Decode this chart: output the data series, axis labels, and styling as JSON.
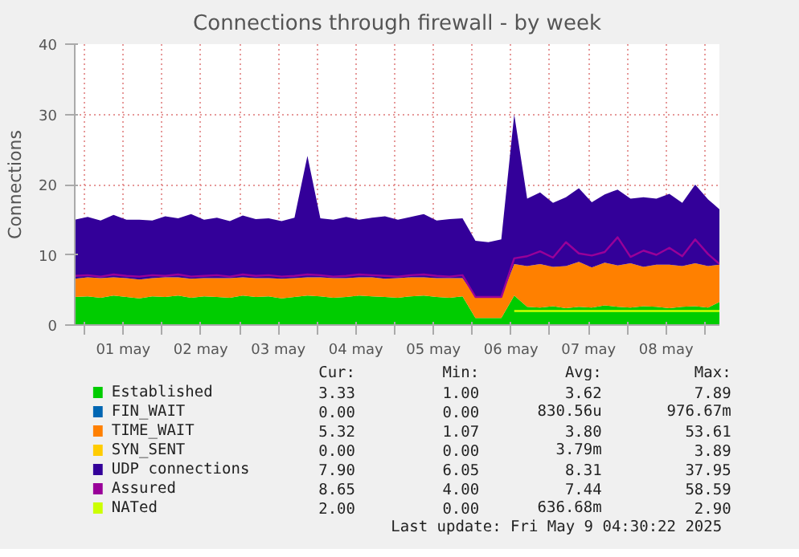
{
  "chart_data": {
    "type": "area",
    "stacked": true,
    "title": "Connections through firewall - by week",
    "ylabel": "Connections",
    "x": [
      "2025-04-30T21:00",
      "2025-05-01T01:00",
      "2025-05-01T05:00",
      "2025-05-01T09:00",
      "2025-05-01T13:00",
      "2025-05-01T17:00",
      "2025-05-01T21:00",
      "2025-05-02T01:00",
      "2025-05-02T05:00",
      "2025-05-02T09:00",
      "2025-05-02T13:00",
      "2025-05-02T17:00",
      "2025-05-02T21:00",
      "2025-05-03T01:00",
      "2025-05-03T05:00",
      "2025-05-03T09:00",
      "2025-05-03T13:00",
      "2025-05-03T17:00",
      "2025-05-03T21:00",
      "2025-05-04T01:00",
      "2025-05-04T05:00",
      "2025-05-04T09:00",
      "2025-05-04T13:00",
      "2025-05-04T17:00",
      "2025-05-04T21:00",
      "2025-05-05T01:00",
      "2025-05-05T05:00",
      "2025-05-05T09:00",
      "2025-05-05T13:00",
      "2025-05-05T17:00",
      "2025-05-05T21:00",
      "2025-05-06T01:00",
      "2025-05-06T05:00",
      "2025-05-06T09:00",
      "2025-05-06T13:00",
      "2025-05-06T17:00",
      "2025-05-06T21:00",
      "2025-05-07T01:00",
      "2025-05-07T05:00",
      "2025-05-07T09:00",
      "2025-05-07T13:00",
      "2025-05-07T17:00",
      "2025-05-07T21:00",
      "2025-05-08T01:00",
      "2025-05-08T05:00",
      "2025-05-08T09:00",
      "2025-05-08T13:00",
      "2025-05-08T17:00",
      "2025-05-08T21:00",
      "2025-05-09T01:00",
      "2025-05-09T04:30"
    ],
    "series": [
      {
        "name": "Established",
        "color": "#00cc00",
        "values": [
          4.0,
          4.1,
          3.9,
          4.2,
          4.0,
          3.8,
          4.1,
          4.0,
          4.2,
          3.9,
          4.1,
          4.0,
          3.9,
          4.2,
          4.0,
          4.1,
          3.8,
          4.0,
          4.2,
          4.1,
          3.9,
          4.0,
          4.2,
          4.1,
          4.0,
          3.9,
          4.1,
          4.2,
          4.0,
          3.9,
          4.1,
          1.0,
          1.0,
          1.0,
          4.2,
          2.6,
          2.5,
          2.7,
          2.4,
          2.6,
          2.5,
          2.8,
          2.6,
          2.5,
          2.7,
          2.6,
          2.4,
          2.6,
          2.7,
          2.5,
          3.3
        ]
      },
      {
        "name": "FIN_WAIT",
        "color": "#0066b3",
        "values": [
          null,
          null,
          null,
          null,
          null,
          null,
          null,
          null,
          null,
          null,
          null,
          null,
          null,
          null,
          null,
          null,
          null,
          null,
          null,
          null,
          null,
          null,
          null,
          null,
          null,
          null,
          null,
          null,
          null,
          null,
          null,
          null,
          null,
          null,
          null,
          null,
          null,
          null,
          null,
          null,
          null,
          null,
          null,
          null,
          null,
          null,
          null,
          null,
          null,
          null,
          null
        ]
      },
      {
        "name": "TIME_WAIT",
        "color": "#ff8000",
        "values": [
          2.6,
          2.7,
          2.8,
          2.6,
          2.7,
          2.7,
          2.6,
          2.8,
          2.6,
          2.7,
          2.6,
          2.7,
          2.8,
          2.6,
          2.7,
          2.6,
          2.8,
          2.7,
          2.6,
          2.7,
          2.8,
          2.7,
          2.6,
          2.7,
          2.6,
          2.8,
          2.7,
          2.6,
          2.7,
          2.8,
          2.6,
          3.0,
          3.0,
          3.0,
          4.5,
          5.8,
          6.2,
          5.6,
          6.0,
          6.4,
          5.7,
          6.1,
          5.9,
          6.3,
          5.6,
          6.0,
          6.2,
          5.8,
          6.1,
          5.9,
          5.3
        ]
      },
      {
        "name": "SYN_SENT",
        "color": "#ffcc00",
        "values": [
          null,
          null,
          null,
          null,
          null,
          null,
          null,
          null,
          null,
          null,
          null,
          null,
          null,
          null,
          null,
          null,
          null,
          null,
          null,
          null,
          null,
          null,
          null,
          null,
          null,
          null,
          null,
          null,
          null,
          null,
          null,
          null,
          null,
          null,
          null,
          null,
          null,
          null,
          null,
          null,
          null,
          null,
          null,
          null,
          null,
          null,
          null,
          null,
          null,
          null,
          null
        ]
      },
      {
        "name": "UDP connections",
        "color": "#330099",
        "values": [
          8.4,
          8.6,
          8.2,
          8.9,
          8.3,
          8.5,
          8.2,
          8.7,
          8.4,
          9.2,
          8.3,
          8.6,
          8.1,
          8.8,
          8.4,
          8.5,
          8.2,
          8.6,
          17.3,
          8.4,
          8.3,
          8.7,
          8.2,
          8.5,
          8.9,
          8.3,
          8.6,
          9.0,
          8.2,
          8.4,
          8.5,
          8.0,
          7.8,
          8.2,
          21.3,
          9.6,
          10.2,
          9.1,
          9.8,
          10.5,
          9.3,
          9.7,
          10.8,
          9.2,
          9.9,
          9.4,
          10.1,
          9.0,
          11.2,
          9.5,
          7.9
        ]
      },
      {
        "name": "Assured",
        "color": "#990099",
        "type": "line",
        "values": [
          7.0,
          7.1,
          6.9,
          7.2,
          7.0,
          6.9,
          7.1,
          7.0,
          7.2,
          6.9,
          7.0,
          7.1,
          6.9,
          7.2,
          7.0,
          7.1,
          6.9,
          7.0,
          7.2,
          7.1,
          6.9,
          7.0,
          7.2,
          7.1,
          7.0,
          6.9,
          7.1,
          7.2,
          7.0,
          6.9,
          7.1,
          4.0,
          4.0,
          4.0,
          9.5,
          9.8,
          10.5,
          9.6,
          11.8,
          10.2,
          9.9,
          10.4,
          12.5,
          9.7,
          10.6,
          10.0,
          11.0,
          9.8,
          12.2,
          10.1,
          8.7
        ]
      },
      {
        "name": "NATed",
        "color": "#ccff00",
        "type": "line",
        "values": [
          null,
          null,
          null,
          null,
          null,
          null,
          null,
          null,
          null,
          null,
          null,
          null,
          null,
          null,
          null,
          null,
          null,
          null,
          null,
          null,
          null,
          null,
          null,
          null,
          null,
          null,
          null,
          null,
          null,
          null,
          null,
          null,
          null,
          null,
          2.0,
          2.0,
          2.0,
          2.0,
          2.0,
          2.0,
          2.0,
          2.0,
          2.0,
          2.0,
          2.0,
          2.0,
          2.0,
          2.0,
          2.0,
          2.0,
          2.0
        ]
      }
    ],
    "xlim": [
      "2025-04-30T21:00",
      "2025-05-09T04:30"
    ],
    "xticks": [
      {
        "value": "2025-05-01T00:00",
        "label": null
      },
      {
        "value": "2025-05-01T12:00",
        "label": "01 may"
      },
      {
        "value": "2025-05-02T00:00",
        "label": null
      },
      {
        "value": "2025-05-02T12:00",
        "label": "02 may"
      },
      {
        "value": "2025-05-03T00:00",
        "label": null
      },
      {
        "value": "2025-05-03T12:00",
        "label": "03 may"
      },
      {
        "value": "2025-05-04T00:00",
        "label": null
      },
      {
        "value": "2025-05-04T12:00",
        "label": "04 may"
      },
      {
        "value": "2025-05-05T00:00",
        "label": null
      },
      {
        "value": "2025-05-05T12:00",
        "label": "05 may"
      },
      {
        "value": "2025-05-06T00:00",
        "label": null
      },
      {
        "value": "2025-05-06T12:00",
        "label": "06 may"
      },
      {
        "value": "2025-05-07T00:00",
        "label": null
      },
      {
        "value": "2025-05-07T12:00",
        "label": "07 may"
      },
      {
        "value": "2025-05-08T00:00",
        "label": null
      },
      {
        "value": "2025-05-08T12:00",
        "label": "08 may"
      },
      {
        "value": "2025-05-09T00:00",
        "label": null
      }
    ],
    "ylim": [
      0,
      40
    ],
    "yticks": [
      0,
      10,
      20,
      30,
      40
    ],
    "grid": true,
    "legend": "bottom",
    "annotations": [
      "Cur:",
      "Min:",
      "Avg:",
      "Max:",
      "3.33",
      "1.00",
      "3.62",
      "7.89",
      "0.00",
      "0.00",
      "830.56u",
      "976.67m",
      "5.32",
      "1.07",
      "3.80",
      "53.61",
      "0.00",
      "0.00",
      "3.79m",
      "3.89",
      "7.90",
      "6.05",
      "8.31",
      "37.95",
      "8.65",
      "4.00",
      "7.44",
      "58.59",
      "2.00",
      "0.00",
      "636.68m",
      "2.90",
      "Last update: Fri May  9 04:30:22 2025"
    ]
  }
}
